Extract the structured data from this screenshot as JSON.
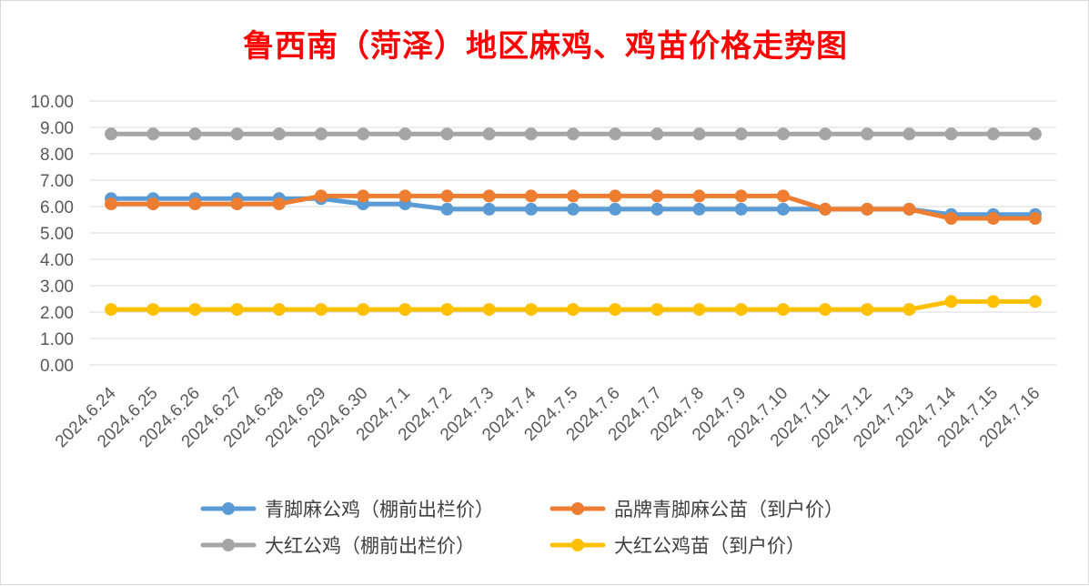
{
  "chart_data": {
    "type": "line",
    "title": "鲁西南（菏泽）地区麻鸡、鸡苗价格走势图",
    "xlabel": "",
    "ylabel": "",
    "ylim": [
      0,
      10
    ],
    "yticks": [
      "0.00",
      "1.00",
      "2.00",
      "3.00",
      "4.00",
      "5.00",
      "6.00",
      "7.00",
      "8.00",
      "9.00",
      "10.00"
    ],
    "grid": true,
    "legend_position": "bottom",
    "categories": [
      "2024.6.24",
      "2024.6.25",
      "2024.6.26",
      "2024.6.27",
      "2024.6.28",
      "2024.6.29",
      "2024.6.30",
      "2024.7.1",
      "2024.7.2",
      "2024.7.3",
      "2024.7.4",
      "2024.7.5",
      "2024.7.6",
      "2024.7.7",
      "2024.7.8",
      "2024.7.9",
      "2024.7.10",
      "2024.7.11",
      "2024.7.12",
      "2024.7.13",
      "2024.7.14",
      "2024.7.15",
      "2024.7.16"
    ],
    "series": [
      {
        "name": "青脚麻公鸡（棚前出栏价）",
        "color": "#5b9bd5",
        "values": [
          6.3,
          6.3,
          6.3,
          6.3,
          6.3,
          6.3,
          6.1,
          6.1,
          5.9,
          5.9,
          5.9,
          5.9,
          5.9,
          5.9,
          5.9,
          5.9,
          5.9,
          5.9,
          5.9,
          5.9,
          5.7,
          5.7,
          5.7
        ]
      },
      {
        "name": "品牌青脚麻公苗（到户价）",
        "color": "#ed7d31",
        "values": [
          6.1,
          6.1,
          6.1,
          6.1,
          6.1,
          6.4,
          6.4,
          6.4,
          6.4,
          6.4,
          6.4,
          6.4,
          6.4,
          6.4,
          6.4,
          6.4,
          6.4,
          5.9,
          5.9,
          5.9,
          5.55,
          5.55,
          5.55
        ]
      },
      {
        "name": "大红公鸡（棚前出栏价）",
        "color": "#a5a5a5",
        "values": [
          8.75,
          8.75,
          8.75,
          8.75,
          8.75,
          8.75,
          8.75,
          8.75,
          8.75,
          8.75,
          8.75,
          8.75,
          8.75,
          8.75,
          8.75,
          8.75,
          8.75,
          8.75,
          8.75,
          8.75,
          8.75,
          8.75,
          8.75
        ]
      },
      {
        "name": "大红公鸡苗（到户价）",
        "color": "#ffc000",
        "values": [
          2.1,
          2.1,
          2.1,
          2.1,
          2.1,
          2.1,
          2.1,
          2.1,
          2.1,
          2.1,
          2.1,
          2.1,
          2.1,
          2.1,
          2.1,
          2.1,
          2.1,
          2.1,
          2.1,
          2.1,
          2.4,
          2.4,
          2.4
        ]
      }
    ]
  }
}
